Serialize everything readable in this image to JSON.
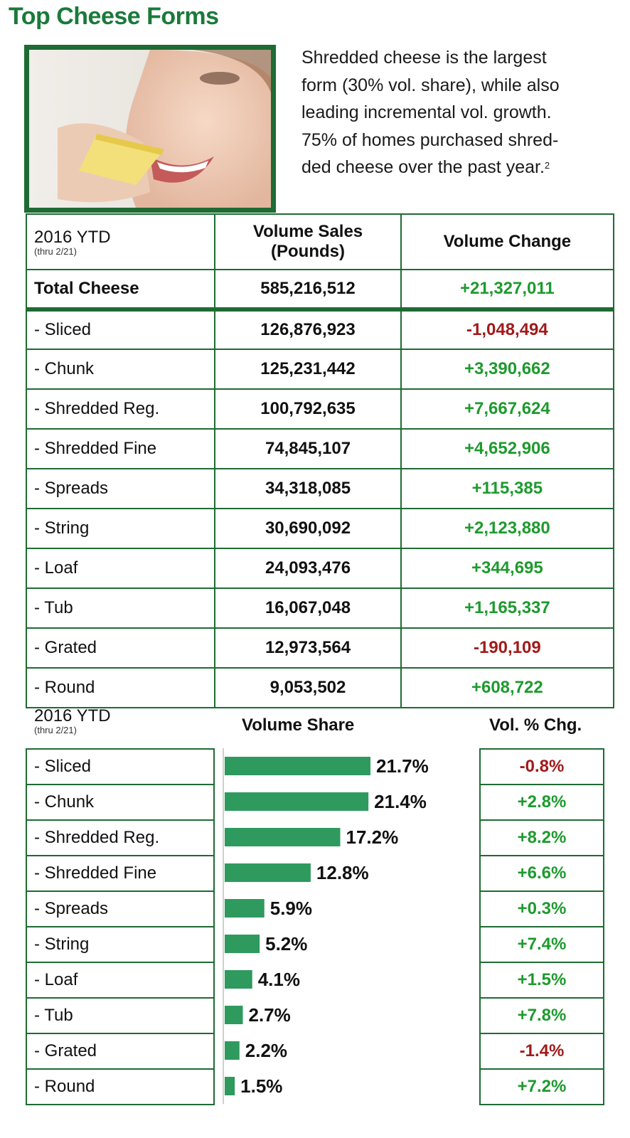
{
  "title": "Top Cheese Forms",
  "intro": {
    "lines": [
      "Shredded cheese is the largest",
      "form (30% vol. share), while also",
      "leading incremental vol. growth.",
      "75% of homes purchased shred-",
      "ded cheese over the past year."
    ],
    "footnote": "2"
  },
  "table": {
    "period": "2016 YTD",
    "period_note": "(thru 2/21)",
    "col_sales": "Volume Sales",
    "col_sales_unit": "(Pounds)",
    "col_change": "Volume Change",
    "total": {
      "label": "Total Cheese",
      "sales": "585,216,512",
      "change": "+21,327,011"
    },
    "rows": [
      {
        "label": "- Sliced",
        "sales": "126,876,923",
        "change": "-1,048,494"
      },
      {
        "label": "- Chunk",
        "sales": "125,231,442",
        "change": "+3,390,662"
      },
      {
        "label": "- Shredded Reg.",
        "sales": "100,792,635",
        "change": "+7,667,624"
      },
      {
        "label": "- Shredded Fine",
        "sales": "74,845,107",
        "change": "+4,652,906"
      },
      {
        "label": "- Spreads",
        "sales": "34,318,085",
        "change": "+115,385"
      },
      {
        "label": "- String",
        "sales": "30,690,092",
        "change": "+2,123,880"
      },
      {
        "label": "- Loaf",
        "sales": "24,093,476",
        "change": "+344,695"
      },
      {
        "label": "- Tub",
        "sales": "16,067,048",
        "change": "+1,165,337"
      },
      {
        "label": "- Grated",
        "sales": "12,973,564",
        "change": "-190,109"
      },
      {
        "label": "- Round",
        "sales": "9,053,502",
        "change": "+608,722"
      }
    ]
  },
  "colors": {
    "green_title": "#1a7a3a",
    "border": "#1e6b33",
    "bar": "#2e9a5e",
    "positive": "#1e9a2e",
    "negative": "#a11a1a"
  },
  "chart_data": {
    "type": "bar",
    "orientation": "horizontal",
    "period": "2016 YTD",
    "period_note": "(thru 2/21)",
    "value_header": "Volume Share",
    "change_header": "Vol. % Chg.",
    "categories": [
      "- Sliced",
      "- Chunk",
      "- Shredded Reg.",
      "- Shredded Fine",
      "- Spreads",
      "- String",
      "- Loaf",
      "- Tub",
      "- Grated",
      "- Round"
    ],
    "values": [
      21.7,
      21.4,
      17.2,
      12.8,
      5.9,
      5.2,
      4.1,
      2.7,
      2.2,
      1.5
    ],
    "value_labels": [
      "21.7%",
      "21.4%",
      "17.2%",
      "12.8%",
      "5.9%",
      "5.2%",
      "4.1%",
      "2.7%",
      "2.2%",
      "1.5%"
    ],
    "pct_change": [
      "-0.8%",
      "+2.8%",
      "+8.2%",
      "+6.6%",
      "+0.3%",
      "+7.4%",
      "+1.5%",
      "+7.8%",
      "-1.4%",
      "+7.2%"
    ],
    "xlim": [
      0,
      25
    ],
    "grid": false,
    "legend": "none"
  }
}
